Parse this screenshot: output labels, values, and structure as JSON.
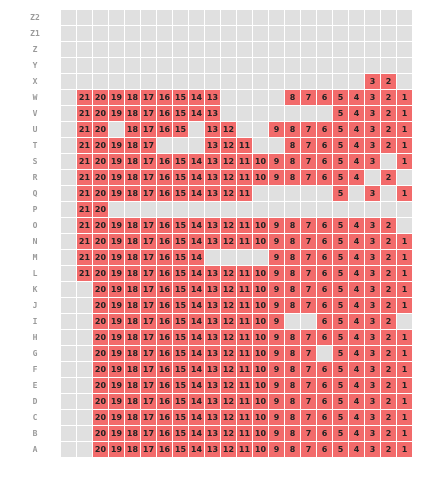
{
  "seatmap": {
    "columns": [
      "",
      "21",
      "20",
      "19",
      "18",
      "17",
      "16",
      "15",
      "14",
      "13",
      "12",
      "11",
      "10",
      "9",
      "8",
      "7",
      "6",
      "5",
      "4",
      "3",
      "2",
      "1"
    ],
    "colors": {
      "occupied": "#f26b6b",
      "empty": "#e0e0e0"
    },
    "rows": [
      {
        "label": "Z2",
        "seats": []
      },
      {
        "label": "Z1",
        "seats": []
      },
      {
        "label": "Z",
        "seats": []
      },
      {
        "label": "Y",
        "seats": []
      },
      {
        "label": "X",
        "seats": [
          "3",
          "2"
        ]
      },
      {
        "label": "W",
        "seats": [
          "21",
          "20",
          "19",
          "18",
          "17",
          "16",
          "15",
          "14",
          "13",
          "8",
          "7",
          "6",
          "5",
          "4",
          "3",
          "2",
          "1"
        ]
      },
      {
        "label": "V",
        "seats": [
          "21",
          "20",
          "19",
          "18",
          "17",
          "16",
          "15",
          "14",
          "13",
          "5",
          "4",
          "3",
          "2",
          "1"
        ]
      },
      {
        "label": "U",
        "seats": [
          "21",
          "20",
          "18",
          "17",
          "16",
          "15",
          "13",
          "12",
          "9",
          "8",
          "7",
          "6",
          "5",
          "4",
          "3",
          "2",
          "1"
        ]
      },
      {
        "label": "T",
        "seats": [
          "21",
          "20",
          "19",
          "18",
          "17",
          "13",
          "12",
          "11",
          "8",
          "7",
          "6",
          "5",
          "4",
          "3",
          "2",
          "1"
        ]
      },
      {
        "label": "S",
        "seats": [
          "21",
          "20",
          "19",
          "18",
          "17",
          "16",
          "15",
          "14",
          "13",
          "12",
          "11",
          "10",
          "9",
          "8",
          "7",
          "6",
          "5",
          "4",
          "3",
          "1"
        ]
      },
      {
        "label": "R",
        "seats": [
          "21",
          "20",
          "19",
          "18",
          "17",
          "16",
          "15",
          "14",
          "13",
          "12",
          "11",
          "10",
          "9",
          "8",
          "7",
          "6",
          "5",
          "4",
          "2"
        ]
      },
      {
        "label": "Q",
        "seats": [
          "21",
          "20",
          "19",
          "18",
          "17",
          "16",
          "15",
          "14",
          "13",
          "12",
          "11",
          "5",
          "3",
          "1"
        ]
      },
      {
        "label": "P",
        "seats": [
          "21",
          "20"
        ]
      },
      {
        "label": "O",
        "seats": [
          "21",
          "20",
          "19",
          "18",
          "17",
          "16",
          "15",
          "14",
          "13",
          "12",
          "11",
          "10",
          "9",
          "8",
          "7",
          "6",
          "5",
          "4",
          "3",
          "2"
        ]
      },
      {
        "label": "N",
        "seats": [
          "21",
          "20",
          "19",
          "18",
          "17",
          "16",
          "15",
          "14",
          "13",
          "12",
          "11",
          "10",
          "9",
          "8",
          "7",
          "6",
          "5",
          "4",
          "3",
          "2",
          "1"
        ]
      },
      {
        "label": "M",
        "seats": [
          "21",
          "20",
          "19",
          "18",
          "17",
          "16",
          "15",
          "14",
          "9",
          "8",
          "7",
          "6",
          "5",
          "4",
          "3",
          "2",
          "1"
        ]
      },
      {
        "label": "L",
        "seats": [
          "21",
          "20",
          "19",
          "18",
          "17",
          "16",
          "15",
          "14",
          "13",
          "12",
          "11",
          "10",
          "9",
          "8",
          "7",
          "6",
          "5",
          "4",
          "3",
          "2",
          "1"
        ]
      },
      {
        "label": "K",
        "seats": [
          "20",
          "19",
          "18",
          "17",
          "16",
          "15",
          "14",
          "13",
          "12",
          "11",
          "10",
          "9",
          "8",
          "7",
          "6",
          "5",
          "4",
          "3",
          "2",
          "1"
        ]
      },
      {
        "label": "J",
        "seats": [
          "20",
          "19",
          "18",
          "17",
          "16",
          "15",
          "14",
          "13",
          "12",
          "11",
          "10",
          "9",
          "8",
          "7",
          "6",
          "5",
          "4",
          "3",
          "2",
          "1"
        ]
      },
      {
        "label": "I",
        "seats": [
          "20",
          "19",
          "18",
          "17",
          "16",
          "15",
          "14",
          "13",
          "12",
          "11",
          "10",
          "9",
          "6",
          "5",
          "4",
          "3",
          "2"
        ]
      },
      {
        "label": "H",
        "seats": [
          "20",
          "19",
          "18",
          "17",
          "16",
          "15",
          "14",
          "13",
          "12",
          "11",
          "10",
          "9",
          "8",
          "7",
          "6",
          "5",
          "4",
          "3",
          "2",
          "1"
        ]
      },
      {
        "label": "G",
        "seats": [
          "20",
          "19",
          "18",
          "17",
          "16",
          "15",
          "14",
          "13",
          "12",
          "11",
          "10",
          "9",
          "8",
          "7",
          "5",
          "4",
          "3",
          "2",
          "1"
        ]
      },
      {
        "label": "F",
        "seats": [
          "20",
          "19",
          "18",
          "17",
          "16",
          "15",
          "14",
          "13",
          "12",
          "11",
          "10",
          "9",
          "8",
          "7",
          "6",
          "5",
          "4",
          "3",
          "2",
          "1"
        ]
      },
      {
        "label": "E",
        "seats": [
          "20",
          "19",
          "18",
          "17",
          "16",
          "15",
          "14",
          "13",
          "12",
          "11",
          "10",
          "9",
          "8",
          "7",
          "6",
          "5",
          "4",
          "3",
          "2",
          "1"
        ]
      },
      {
        "label": "D",
        "seats": [
          "20",
          "19",
          "18",
          "17",
          "16",
          "15",
          "14",
          "13",
          "12",
          "11",
          "10",
          "9",
          "8",
          "7",
          "6",
          "5",
          "4",
          "3",
          "2",
          "1"
        ]
      },
      {
        "label": "C",
        "seats": [
          "20",
          "19",
          "18",
          "17",
          "16",
          "15",
          "14",
          "13",
          "12",
          "11",
          "10",
          "9",
          "8",
          "7",
          "6",
          "5",
          "4",
          "3",
          "2",
          "1"
        ]
      },
      {
        "label": "B",
        "seats": [
          "20",
          "19",
          "18",
          "17",
          "16",
          "15",
          "14",
          "13",
          "12",
          "11",
          "10",
          "9",
          "8",
          "7",
          "6",
          "5",
          "4",
          "3",
          "2",
          "1"
        ]
      },
      {
        "label": "A",
        "seats": [
          "20",
          "19",
          "18",
          "17",
          "16",
          "15",
          "14",
          "13",
          "12",
          "11",
          "10",
          "9",
          "8",
          "7",
          "6",
          "5",
          "4",
          "3",
          "2",
          "1"
        ]
      }
    ]
  }
}
